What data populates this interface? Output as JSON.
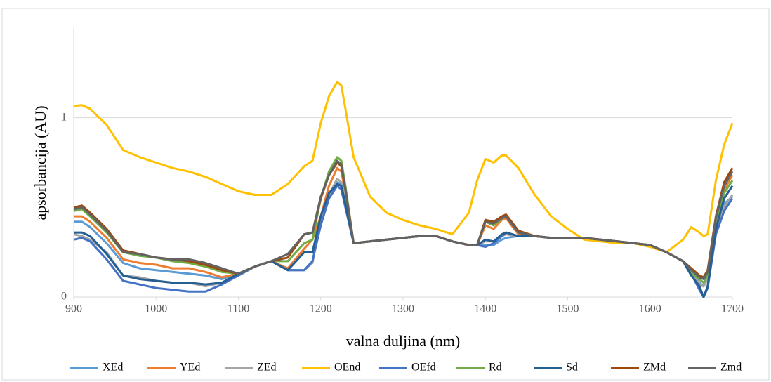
{
  "chart_data": {
    "type": "line",
    "y_label": "apsorbancija (AU)",
    "x_label": "valna duljina (nm)",
    "x": [
      900,
      910,
      920,
      940,
      960,
      980,
      1000,
      1020,
      1040,
      1060,
      1080,
      1100,
      1120,
      1140,
      1160,
      1180,
      1190,
      1200,
      1210,
      1220,
      1225,
      1230,
      1240,
      1260,
      1280,
      1300,
      1320,
      1340,
      1360,
      1380,
      1390,
      1400,
      1410,
      1420,
      1425,
      1440,
      1460,
      1480,
      1500,
      1520,
      1540,
      1560,
      1580,
      1600,
      1620,
      1640,
      1650,
      1660,
      1665,
      1670,
      1680,
      1690,
      1700
    ],
    "series": [
      {
        "name": "XEd",
        "color": "#5b9bd5",
        "values": [
          0.42,
          0.42,
          0.39,
          0.3,
          0.19,
          0.16,
          0.15,
          0.14,
          0.13,
          0.12,
          0.1,
          0.13,
          0.17,
          0.2,
          0.15,
          0.15,
          0.2,
          0.42,
          0.57,
          0.64,
          0.63,
          0.55,
          0.3,
          0.31,
          0.32,
          0.33,
          0.34,
          0.34,
          0.31,
          0.29,
          0.29,
          0.29,
          0.29,
          0.32,
          0.33,
          0.34,
          0.34,
          0.33,
          0.33,
          0.33,
          0.32,
          0.31,
          0.3,
          0.29,
          0.25,
          0.2,
          0.15,
          0.08,
          0.06,
          0.1,
          0.38,
          0.52,
          0.56
        ]
      },
      {
        "name": "YEd",
        "color": "#ed7d31",
        "values": [
          0.45,
          0.45,
          0.42,
          0.33,
          0.21,
          0.19,
          0.18,
          0.16,
          0.16,
          0.14,
          0.11,
          0.13,
          0.17,
          0.2,
          0.16,
          0.27,
          0.32,
          0.45,
          0.62,
          0.72,
          0.7,
          0.58,
          0.3,
          0.31,
          0.32,
          0.33,
          0.34,
          0.34,
          0.31,
          0.29,
          0.29,
          0.4,
          0.38,
          0.43,
          0.44,
          0.35,
          0.34,
          0.33,
          0.33,
          0.33,
          0.32,
          0.31,
          0.3,
          0.29,
          0.25,
          0.2,
          0.15,
          0.07,
          0.06,
          0.12,
          0.42,
          0.6,
          0.68
        ]
      },
      {
        "name": "ZEd",
        "color": "#a5a5a5",
        "values": [
          0.35,
          0.34,
          0.32,
          0.25,
          0.12,
          0.11,
          0.09,
          0.08,
          0.08,
          0.06,
          0.08,
          0.13,
          0.17,
          0.2,
          0.15,
          0.15,
          0.19,
          0.43,
          0.57,
          0.66,
          0.64,
          0.55,
          0.3,
          0.31,
          0.32,
          0.33,
          0.34,
          0.34,
          0.31,
          0.29,
          0.29,
          0.31,
          0.31,
          0.34,
          0.35,
          0.34,
          0.34,
          0.33,
          0.33,
          0.33,
          0.32,
          0.31,
          0.3,
          0.29,
          0.25,
          0.2,
          0.14,
          0.07,
          0.06,
          0.1,
          0.38,
          0.5,
          0.57
        ]
      },
      {
        "name": "OEnd",
        "color": "#ffc000",
        "values": [
          1.066,
          1.07,
          1.05,
          0.96,
          0.82,
          0.78,
          0.75,
          0.72,
          0.7,
          0.67,
          0.63,
          0.59,
          0.57,
          0.57,
          0.63,
          0.73,
          0.76,
          0.97,
          1.12,
          1.2,
          1.18,
          1.05,
          0.78,
          0.56,
          0.47,
          0.43,
          0.4,
          0.38,
          0.35,
          0.47,
          0.65,
          0.77,
          0.75,
          0.79,
          0.79,
          0.72,
          0.57,
          0.45,
          0.38,
          0.32,
          0.31,
          0.3,
          0.3,
          0.28,
          0.25,
          0.32,
          0.39,
          0.36,
          0.34,
          0.35,
          0.65,
          0.85,
          0.97
        ]
      },
      {
        "name": "OEfd",
        "color": "#4472c4",
        "values": [
          0.32,
          0.33,
          0.31,
          0.21,
          0.09,
          0.07,
          0.05,
          0.04,
          0.03,
          0.03,
          0.07,
          0.12,
          0.17,
          0.2,
          0.15,
          0.15,
          0.2,
          0.4,
          0.55,
          0.62,
          0.6,
          0.5,
          0.3,
          0.31,
          0.32,
          0.33,
          0.34,
          0.34,
          0.31,
          0.29,
          0.29,
          0.28,
          0.3,
          0.34,
          0.36,
          0.34,
          0.34,
          0.33,
          0.33,
          0.33,
          0.32,
          0.31,
          0.3,
          0.29,
          0.25,
          0.2,
          0.13,
          0.04,
          0.0,
          0.05,
          0.35,
          0.48,
          0.55
        ]
      },
      {
        "name": "Rd",
        "color": "#70ad47",
        "values": [
          0.48,
          0.49,
          0.45,
          0.36,
          0.25,
          0.23,
          0.22,
          0.2,
          0.19,
          0.17,
          0.14,
          0.13,
          0.17,
          0.2,
          0.2,
          0.3,
          0.32,
          0.55,
          0.7,
          0.78,
          0.76,
          0.62,
          0.3,
          0.31,
          0.32,
          0.33,
          0.34,
          0.34,
          0.31,
          0.29,
          0.29,
          0.42,
          0.4,
          0.44,
          0.45,
          0.36,
          0.34,
          0.33,
          0.33,
          0.33,
          0.32,
          0.31,
          0.3,
          0.29,
          0.25,
          0.2,
          0.13,
          0.1,
          0.08,
          0.12,
          0.42,
          0.58,
          0.65
        ]
      },
      {
        "name": "Sd",
        "color": "#255e91",
        "values": [
          0.36,
          0.36,
          0.34,
          0.24,
          0.12,
          0.1,
          0.09,
          0.08,
          0.08,
          0.07,
          0.08,
          0.13,
          0.17,
          0.2,
          0.15,
          0.25,
          0.25,
          0.45,
          0.58,
          0.63,
          0.62,
          0.52,
          0.3,
          0.31,
          0.32,
          0.33,
          0.34,
          0.34,
          0.31,
          0.29,
          0.29,
          0.32,
          0.31,
          0.35,
          0.36,
          0.34,
          0.34,
          0.33,
          0.33,
          0.33,
          0.32,
          0.31,
          0.3,
          0.29,
          0.25,
          0.2,
          0.12,
          0.06,
          0.0,
          0.06,
          0.38,
          0.55,
          0.62
        ]
      },
      {
        "name": "ZMd",
        "color": "#9e480e",
        "values": [
          0.5,
          0.51,
          0.47,
          0.38,
          0.26,
          0.24,
          0.22,
          0.21,
          0.2,
          0.18,
          0.15,
          0.13,
          0.17,
          0.2,
          0.22,
          0.35,
          0.36,
          0.55,
          0.68,
          0.75,
          0.73,
          0.6,
          0.3,
          0.31,
          0.32,
          0.33,
          0.34,
          0.34,
          0.31,
          0.29,
          0.29,
          0.43,
          0.42,
          0.45,
          0.46,
          0.37,
          0.34,
          0.33,
          0.33,
          0.33,
          0.32,
          0.31,
          0.3,
          0.29,
          0.25,
          0.2,
          0.16,
          0.12,
          0.11,
          0.15,
          0.45,
          0.64,
          0.72
        ]
      },
      {
        "name": "Zmd",
        "color": "#636363",
        "values": [
          0.49,
          0.5,
          0.46,
          0.37,
          0.25,
          0.24,
          0.22,
          0.21,
          0.21,
          0.19,
          0.16,
          0.13,
          0.17,
          0.2,
          0.24,
          0.35,
          0.36,
          0.56,
          0.68,
          0.76,
          0.74,
          0.6,
          0.3,
          0.31,
          0.32,
          0.33,
          0.34,
          0.34,
          0.31,
          0.29,
          0.29,
          0.42,
          0.41,
          0.44,
          0.45,
          0.36,
          0.34,
          0.33,
          0.33,
          0.33,
          0.32,
          0.31,
          0.3,
          0.29,
          0.25,
          0.2,
          0.15,
          0.11,
          0.1,
          0.14,
          0.44,
          0.62,
          0.7
        ]
      }
    ],
    "xlim": [
      900,
      1700
    ],
    "xticks": [
      900,
      1000,
      1100,
      1200,
      1300,
      1400,
      1500,
      1600,
      1700
    ],
    "ylim": [
      0,
      1.5
    ],
    "yticks": [
      0,
      1
    ],
    "grid": true,
    "legend": "bottom"
  }
}
